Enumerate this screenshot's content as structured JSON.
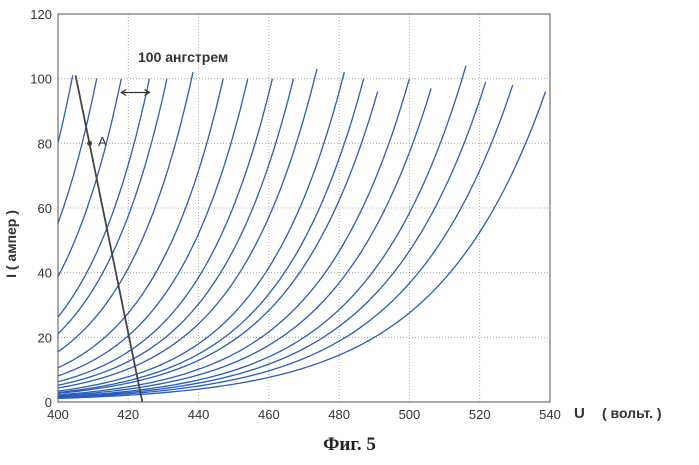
{
  "chart_data": {
    "type": "line",
    "title": "",
    "xlabel": "U",
    "xlabel_unit": "( вольт. )",
    "ylabel": "I ( ампер )",
    "xlim": [
      400,
      540
    ],
    "ylim": [
      0,
      120
    ],
    "xticks": [
      400,
      420,
      440,
      460,
      480,
      500,
      520,
      540
    ],
    "yticks": [
      0,
      20,
      40,
      60,
      80,
      100,
      120
    ],
    "grid": true,
    "curve_color": "#2a5db8",
    "curve_family": {
      "description_count": 20,
      "x_at_I100": [
        404,
        411,
        418,
        426,
        431,
        438,
        447,
        454,
        461,
        467,
        473,
        481,
        487,
        492,
        500,
        507,
        515,
        522,
        530,
        540
      ],
      "I_end": [
        101,
        100,
        100,
        100,
        100,
        102,
        100,
        100,
        100,
        100,
        103,
        102,
        100,
        96,
        100,
        97,
        104,
        99,
        98,
        96
      ]
    },
    "line_color": "#444444",
    "line_A": {
      "x": [
        405,
        424
      ],
      "y": [
        101,
        0
      ]
    },
    "point_A": {
      "label": "A",
      "x": 409,
      "y": 80
    },
    "spacing_annotation": {
      "label": "100 ангстрем",
      "x": [
        418,
        426
      ],
      "y": 92
    }
  },
  "caption": "Фиг. 5"
}
